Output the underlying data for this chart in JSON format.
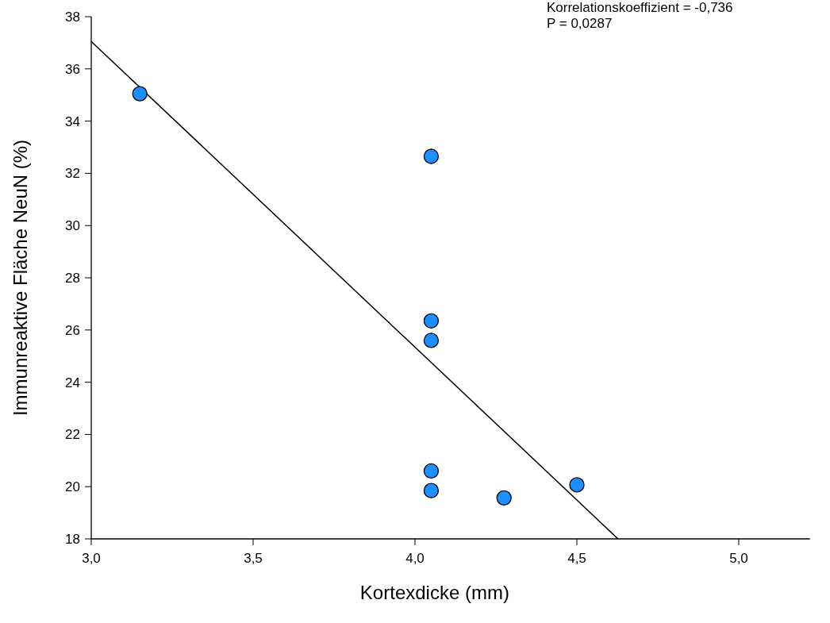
{
  "chart_data": {
    "type": "scatter",
    "xlabel": "Kortexdicke (mm)",
    "ylabel": "Immunreaktive Fläche NeuN (%)",
    "annotations": [
      "Korrelationskoeffizient = -0,736",
      "P = 0,0287"
    ],
    "xlim": [
      3.0,
      5.22
    ],
    "ylim": [
      18,
      38
    ],
    "xticks": [
      {
        "value": 3.0,
        "label": "3,0"
      },
      {
        "value": 3.5,
        "label": "3,5"
      },
      {
        "value": 4.0,
        "label": "4,0"
      },
      {
        "value": 4.5,
        "label": "4,5"
      },
      {
        "value": 5.0,
        "label": "5,0"
      }
    ],
    "yticks": [
      18,
      20,
      22,
      24,
      26,
      28,
      30,
      32,
      34,
      36,
      38
    ],
    "grid": false,
    "marker": "circle",
    "series": [
      {
        "color": "#1e8fff",
        "x": [
          3.15,
          4.05,
          4.05,
          4.05,
          4.05,
          4.05,
          4.275,
          4.5
        ],
        "values": [
          35.05,
          32.65,
          26.35,
          25.6,
          20.6,
          19.85,
          19.57,
          20.07
        ]
      },
      {
        "type": "line",
        "color": "#000000",
        "line_style": "solid",
        "marker": "none",
        "x": [
          3.0,
          4.627
        ],
        "values": [
          37.05,
          18
        ]
      }
    ]
  }
}
